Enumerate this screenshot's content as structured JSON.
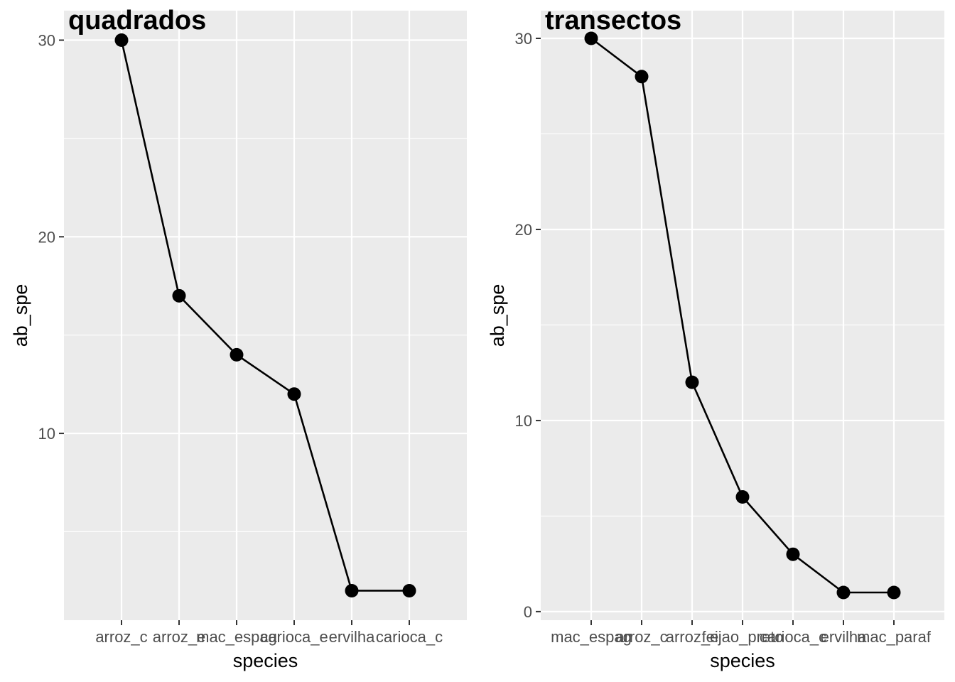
{
  "chart_data": [
    {
      "type": "line",
      "title": "quadrados",
      "xlabel": "species",
      "ylabel": "ab_spe",
      "categories": [
        "arroz_c",
        "arroz_e",
        "mac_espag",
        "carioca_e",
        "ervilha",
        "carioca_c"
      ],
      "values": [
        30,
        17,
        14,
        12,
        2,
        2
      ],
      "yticks": [
        10,
        20,
        30
      ],
      "ylim": [
        0.5,
        31.5
      ],
      "grid": true,
      "legend": "none",
      "colors": {
        "panel": "#ebebeb",
        "grid": "#ffffff",
        "series": "#000000"
      }
    },
    {
      "type": "line",
      "title": "transectos",
      "xlabel": "species",
      "ylabel": "ab_spe",
      "categories": [
        "mac_espag",
        "arroz_c",
        "arroz_e",
        "feijao_preto",
        "carioca_c",
        "ervilha",
        "mac_paraf"
      ],
      "values": [
        30,
        28,
        12,
        6,
        3,
        1,
        1
      ],
      "yticks": [
        0,
        10,
        20,
        30
      ],
      "ylim": [
        -0.45,
        31.45
      ],
      "grid": true,
      "legend": "none",
      "colors": {
        "panel": "#ebebeb",
        "grid": "#ffffff",
        "series": "#000000"
      }
    }
  ]
}
